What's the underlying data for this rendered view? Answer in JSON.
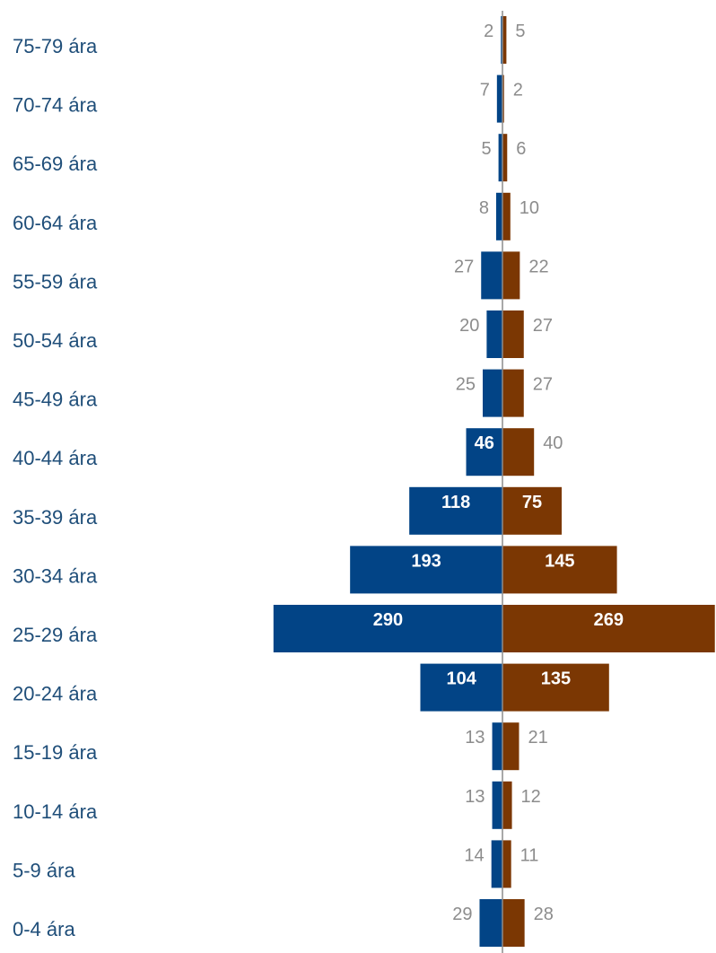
{
  "chart_data": {
    "type": "bar",
    "orientation": "horizontal",
    "layout": "population-pyramid",
    "categories": [
      "75-79 ára",
      "70-74 ára",
      "65-69 ára",
      "60-64 ára",
      "55-59 ára",
      "50-54 ára",
      "45-49 ára",
      "40-44 ára",
      "35-39 ára",
      "30-34 ára",
      "25-29 ára",
      "20-24 ára",
      "15-19 ára",
      "10-14 ára",
      "5-9 ára",
      "0-4 ára"
    ],
    "series": [
      {
        "side": "left",
        "color": "#024486",
        "values": [
          2,
          7,
          5,
          8,
          27,
          20,
          25,
          46,
          118,
          193,
          290,
          104,
          13,
          13,
          14,
          29
        ]
      },
      {
        "side": "right",
        "color": "#7b3703",
        "values": [
          5,
          2,
          6,
          10,
          22,
          27,
          27,
          40,
          75,
          145,
          269,
          135,
          21,
          12,
          11,
          28
        ]
      }
    ],
    "axis_color": "#8c8c8c",
    "grid": false,
    "legend": "none"
  }
}
